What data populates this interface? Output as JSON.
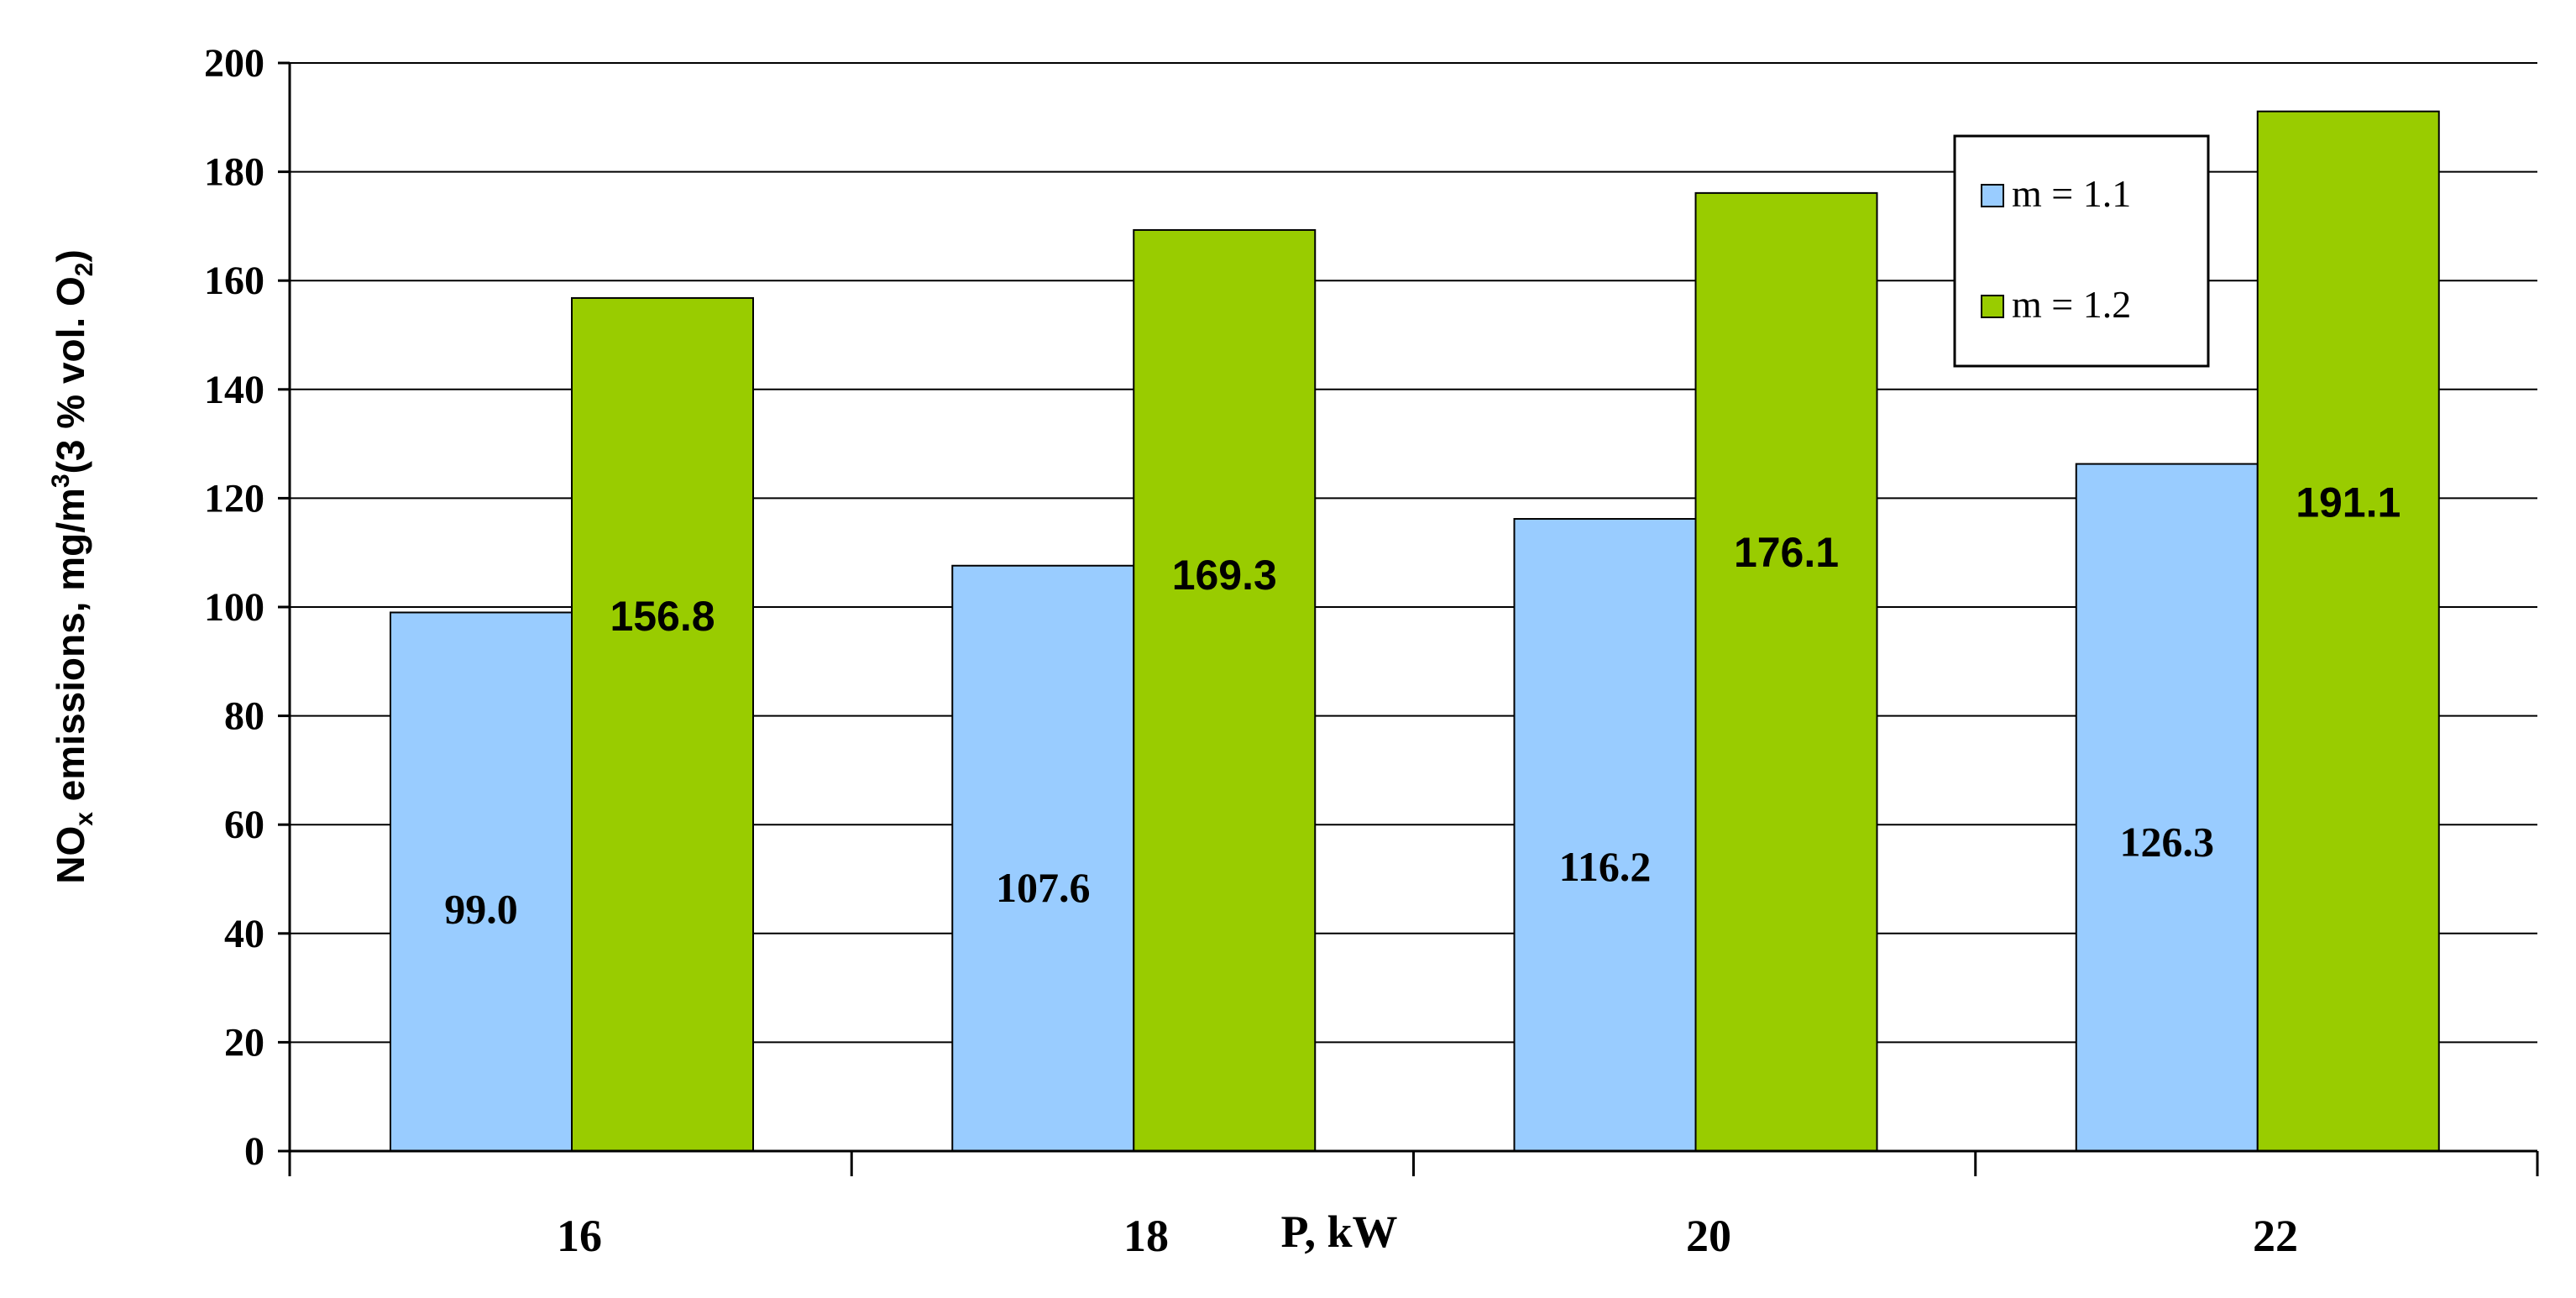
{
  "chart_data": {
    "type": "bar",
    "categories": [
      "16",
      "18",
      "20",
      "22"
    ],
    "series": [
      {
        "name": "m = 1.1",
        "values": [
          99.0,
          107.6,
          116.2,
          126.3
        ],
        "labels": [
          "99.0",
          "107.6",
          "116.2",
          "126.3"
        ],
        "color": "#99CCFF"
      },
      {
        "name": "m = 1.2",
        "values": [
          156.8,
          169.3,
          176.1,
          191.1
        ],
        "labels": [
          "156.8",
          "169.3",
          "176.1",
          "191.1"
        ],
        "color": "#99CC00"
      }
    ],
    "xlabel": "P, kW",
    "ylabel": {
      "part1": "NO",
      "sub1": "x",
      "part2": " emissions, mg/m",
      "sup": "3",
      "part3": "(3 % vol. O",
      "sub2": "2",
      "part4": ")"
    },
    "ylim": [
      0,
      200
    ],
    "yticks": [
      "0",
      "20",
      "40",
      "60",
      "80",
      "100",
      "120",
      "140",
      "160",
      "180",
      "200"
    ],
    "grid": true,
    "legend_position": "top-right"
  }
}
